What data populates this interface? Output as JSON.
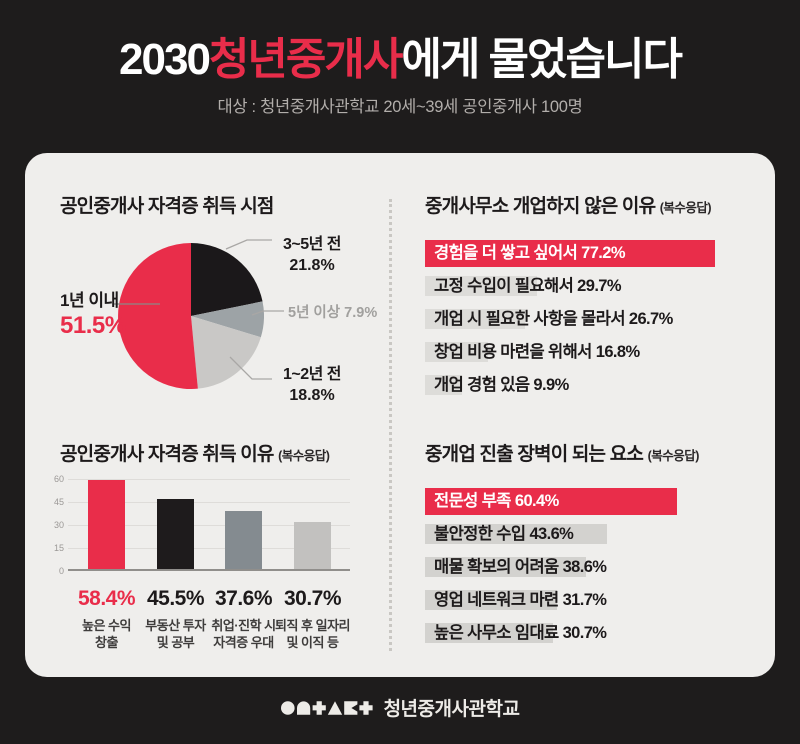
{
  "page": {
    "background": "#1e1c1c",
    "card_background": "#efeeec",
    "accent_red": "#e92d4a"
  },
  "header": {
    "title_prefix": "2030",
    "title_highlight": "청년중개사",
    "title_suffix": "에게 물었습니다",
    "subtitle": "대상 : 청년중개사관학교 20세~39세 공인중개사 100명"
  },
  "chart_data": [
    {
      "type": "pie",
      "title": "공인중개사 자격증 취득 시점",
      "start_angle_deg": -90,
      "direction": "clockwise",
      "slices": [
        {
          "label": "3~5년 전",
          "value": 21.8,
          "color": "#1b181a"
        },
        {
          "label": "5년 이상",
          "value": 7.9,
          "color": "#9da3a6"
        },
        {
          "label": "1~2년 전",
          "value": 18.8,
          "color": "#c9c8c6"
        },
        {
          "label": "1년 이내",
          "value": 51.5,
          "color": "#e92d4a"
        }
      ]
    },
    {
      "type": "bar",
      "title": "공인중개사 자격증 취득 이유",
      "note": "(복수응답)",
      "categories": [
        "높은 수익\n창출",
        "부동산 투자\n및 공부",
        "취업·진학 시\n자격증 우대",
        "퇴직 후 일자리\n및 이직 등"
      ],
      "values": [
        58.4,
        45.5,
        37.6,
        30.7
      ],
      "bar_colors": [
        "#e92d4a",
        "#1e1b1c",
        "#848b90",
        "#c2c1bf"
      ],
      "value_label_colors": [
        "#e92d4a",
        "#1d1a1b",
        "#1d1a1b",
        "#1d1a1b"
      ],
      "ylim": [
        0,
        60
      ],
      "yticks": [
        0,
        15,
        30,
        45,
        60
      ],
      "grid": true,
      "legend": "none"
    },
    {
      "type": "hbar",
      "title": "중개사무소 개업하지 않은 이유",
      "note": "(복수응답)",
      "bar_color": "#dddcd9",
      "highlight_color": "#e92d4a",
      "items": [
        {
          "label": "경험을 더 쌓고 싶어서",
          "value": 77.2,
          "highlight": true
        },
        {
          "label": "고정 수입이 필요해서",
          "value": 29.7
        },
        {
          "label": "개업 시 필요한 사항을 몰라서",
          "value": 26.7
        },
        {
          "label": "창업 비용 마련을 위해서",
          "value": 16.8
        },
        {
          "label": "개업 경험 있음",
          "value": 9.9
        }
      ]
    },
    {
      "type": "hbar",
      "title": "중개업 진출 장벽이 되는 요소",
      "note": "(복수응답)",
      "bar_color": "#d3d2cf",
      "highlight_color": "#e92d4a",
      "items": [
        {
          "label": "전문성 부족",
          "value": 60.4,
          "highlight": true
        },
        {
          "label": "불안정한 수입",
          "value": 43.6
        },
        {
          "label": "매물 확보의 어려움",
          "value": 38.6
        },
        {
          "label": "영업 네트워크 마련",
          "value": 31.7
        },
        {
          "label": "높은 사무소 임대료",
          "value": 30.7
        }
      ]
    }
  ],
  "footer": {
    "brand": "ONTACT",
    "label": "청년중개사관학교",
    "logo_shapes": [
      "circle",
      "arch",
      "plus",
      "triangle",
      "notched-square",
      "plus"
    ]
  }
}
